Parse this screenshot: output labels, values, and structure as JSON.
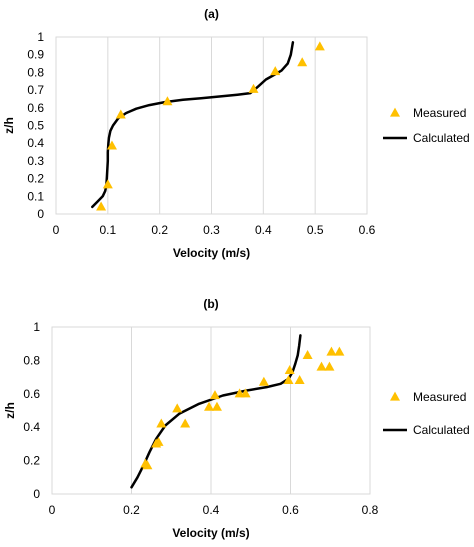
{
  "chart_data": [
    {
      "type": "scatter",
      "title": "(a)",
      "xlabel": "Velocity (m/s)",
      "ylabel": "z/h",
      "xlim": [
        0,
        0.6
      ],
      "ylim": [
        0,
        1
      ],
      "x_ticks": [
        0,
        0.1,
        0.2,
        0.3,
        0.4,
        0.5,
        0.6
      ],
      "x_tick_labels": [
        "0",
        "0.1",
        "0.2",
        "0.3",
        "0.4",
        "0.5",
        "0.6"
      ],
      "y_ticks": [
        0,
        0.1,
        0.2,
        0.3,
        0.4,
        0.5,
        0.6,
        0.7,
        0.8,
        0.9,
        1
      ],
      "y_tick_labels": [
        "0",
        "0.1",
        "0.2",
        "0.3",
        "0.4",
        "0.5",
        "0.6",
        "0.7",
        "0.8",
        "0.9",
        "1"
      ],
      "grid": "vertical",
      "legend_position": "right",
      "series": [
        {
          "name": "Measured",
          "kind": "markers",
          "color": "#FFC000",
          "x": [
            0.087,
            0.1,
            0.108,
            0.125,
            0.215,
            0.381,
            0.423,
            0.475,
            0.509
          ],
          "y": [
            0.04,
            0.165,
            0.385,
            0.56,
            0.635,
            0.705,
            0.805,
            0.855,
            0.945
          ]
        },
        {
          "name": "Calculated",
          "kind": "line",
          "color": "#000000",
          "x": [
            0.07,
            0.08,
            0.09,
            0.095,
            0.097,
            0.098,
            0.099,
            0.1,
            0.1,
            0.101,
            0.102,
            0.105,
            0.11,
            0.12,
            0.135,
            0.155,
            0.18,
            0.21,
            0.245,
            0.28,
            0.32,
            0.35,
            0.375,
            0.39,
            0.405,
            0.42,
            0.435,
            0.447,
            0.453,
            0.457
          ],
          "y": [
            0.04,
            0.07,
            0.1,
            0.13,
            0.16,
            0.2,
            0.25,
            0.3,
            0.35,
            0.4,
            0.43,
            0.47,
            0.5,
            0.54,
            0.57,
            0.595,
            0.615,
            0.632,
            0.645,
            0.654,
            0.665,
            0.674,
            0.683,
            0.72,
            0.76,
            0.785,
            0.81,
            0.85,
            0.9,
            0.97
          ]
        }
      ]
    },
    {
      "type": "scatter",
      "title": "(b)",
      "xlabel": "Velocity (m/s)",
      "ylabel": "z/h",
      "xlim": [
        0,
        0.8
      ],
      "ylim": [
        0,
        1
      ],
      "x_ticks": [
        0,
        0.2,
        0.4,
        0.6,
        0.8
      ],
      "x_tick_labels": [
        "0",
        "0.2",
        "0.4",
        "0.6",
        "0.8"
      ],
      "y_ticks": [
        0,
        0.2,
        0.4,
        0.6,
        0.8,
        1
      ],
      "y_tick_labels": [
        "0",
        "0.2",
        "0.4",
        "0.6",
        "0.8",
        "1"
      ],
      "grid": "vertical",
      "legend_position": "right",
      "series": [
        {
          "name": "Measured",
          "kind": "markers",
          "color": "#FFC000",
          "x": [
            0.235,
            0.24,
            0.262,
            0.268,
            0.275,
            0.315,
            0.335,
            0.395,
            0.41,
            0.415,
            0.472,
            0.487,
            0.533,
            0.595,
            0.598,
            0.623,
            0.643,
            0.678,
            0.698,
            0.703,
            0.723
          ],
          "y": [
            0.18,
            0.17,
            0.3,
            0.31,
            0.42,
            0.51,
            0.42,
            0.52,
            0.59,
            0.52,
            0.6,
            0.6,
            0.67,
            0.68,
            0.74,
            0.68,
            0.83,
            0.76,
            0.76,
            0.85,
            0.85
          ]
        },
        {
          "name": "Calculated",
          "kind": "line",
          "color": "#000000",
          "x": [
            0.2,
            0.215,
            0.23,
            0.245,
            0.262,
            0.285,
            0.32,
            0.37,
            0.43,
            0.49,
            0.54,
            0.575,
            0.595,
            0.605,
            0.612,
            0.618,
            0.622,
            0.625
          ],
          "y": [
            0.04,
            0.1,
            0.17,
            0.25,
            0.33,
            0.41,
            0.48,
            0.54,
            0.59,
            0.62,
            0.64,
            0.66,
            0.69,
            0.73,
            0.78,
            0.83,
            0.89,
            0.95
          ]
        }
      ]
    }
  ]
}
